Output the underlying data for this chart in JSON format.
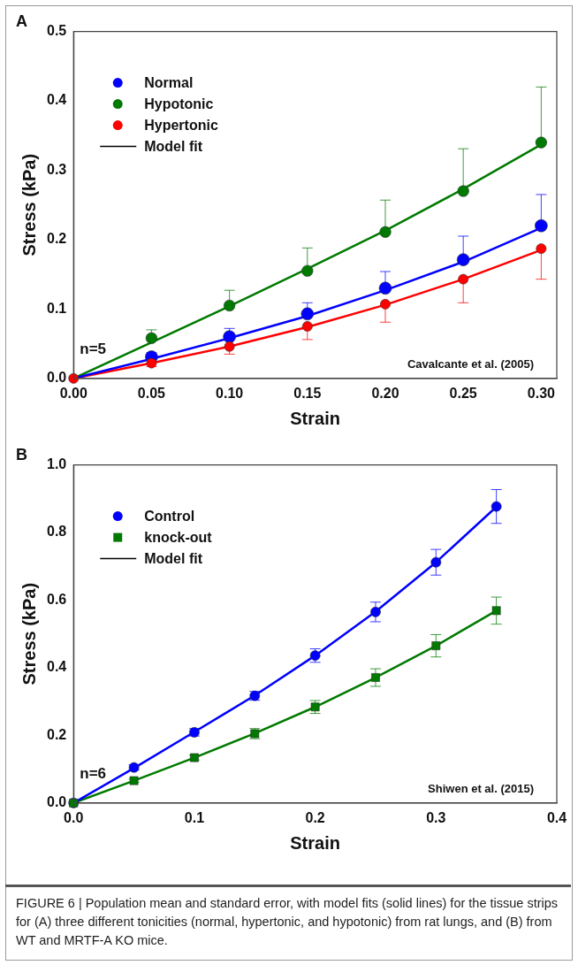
{
  "chart_data": [
    {
      "type": "scatter",
      "title": "A",
      "xlabel": "Strain",
      "ylabel": "Stress (kPa)",
      "x": [
        0,
        0.05,
        0.1,
        0.15,
        0.2,
        0.25,
        0.3
      ],
      "xlim": [
        0,
        0.31
      ],
      "ylim": [
        0,
        0.5
      ],
      "xticks": [
        {
          "value": 0,
          "label": "0.00"
        },
        {
          "value": 0.05,
          "label": "0.05"
        },
        {
          "value": 0.1,
          "label": "0.10"
        },
        {
          "value": 0.15,
          "label": "0.15"
        },
        {
          "value": 0.2,
          "label": "0.20"
        },
        {
          "value": 0.25,
          "label": "0.25"
        },
        {
          "value": 0.3,
          "label": "0.30"
        }
      ],
      "yticks": [
        {
          "value": 0,
          "label": "0.0"
        },
        {
          "value": 0.1,
          "label": "0.1"
        },
        {
          "value": 0.2,
          "label": "0.2"
        },
        {
          "value": 0.3,
          "label": "0.3"
        },
        {
          "value": 0.4,
          "label": "0.4"
        },
        {
          "value": 0.5,
          "label": "0.5"
        }
      ],
      "legend": "top left",
      "series": [
        {
          "type": "line",
          "color": "#0000ff",
          "values": [
            0,
            0.028,
            0.058,
            0.09,
            0.127,
            0.168,
            0.217
          ]
        },
        {
          "type": "line",
          "color": "#007a00",
          "values": [
            0,
            0.052,
            0.104,
            0.158,
            0.213,
            0.273,
            0.337
          ]
        },
        {
          "type": "line",
          "color": "#ff0000",
          "values": [
            0,
            0.022,
            0.046,
            0.074,
            0.106,
            0.143,
            0.185
          ]
        },
        {
          "name": "Normal",
          "type": "scatter",
          "marker": "circle",
          "color": "#0000ff",
          "values": [
            null,
            0.031,
            0.06,
            0.093,
            0.13,
            0.171,
            0.22
          ],
          "errors": [
            null,
            [
              0.031,
              0.037
            ],
            [
              0.06,
              0.072
            ],
            [
              0.093,
              0.109
            ],
            [
              0.13,
              0.154
            ],
            [
              0.171,
              0.205
            ],
            [
              0.22,
              0.265
            ]
          ]
        },
        {
          "name": "Hypotonic",
          "type": "scatter",
          "marker": "circle",
          "color": "#007a00",
          "values": [
            null,
            0.058,
            0.105,
            0.155,
            0.211,
            0.27,
            0.34
          ],
          "errors": [
            null,
            [
              0.058,
              0.07
            ],
            [
              0.105,
              0.127
            ],
            [
              0.155,
              0.188
            ],
            [
              0.211,
              0.257
            ],
            [
              0.27,
              0.331
            ],
            [
              0.34,
              0.42
            ]
          ]
        },
        {
          "name": "Hypertonic",
          "type": "scatter",
          "marker": "circle",
          "color": "#ff0000",
          "values": [
            0,
            0.022,
            0.046,
            0.075,
            0.107,
            0.143,
            0.187
          ],
          "errors": [
            null,
            [
              0.017,
              0.022
            ],
            [
              0.035,
              0.046
            ],
            [
              0.056,
              0.075
            ],
            [
              0.081,
              0.107
            ],
            [
              0.109,
              0.143
            ],
            [
              0.143,
              0.187
            ]
          ]
        },
        {
          "name": "Model fit",
          "type": "line",
          "color": "#000000",
          "values": [
            null,
            null,
            null,
            null,
            null,
            null,
            null
          ]
        }
      ],
      "annotations": [
        "n=5",
        "Cavalcante et al. (2005)"
      ]
    },
    {
      "type": "scatter",
      "title": "B",
      "xlabel": "Strain",
      "ylabel": "Stress (kPa)",
      "x": [
        0,
        0.05,
        0.1,
        0.15,
        0.2,
        0.25,
        0.3,
        0.35
      ],
      "xlim": [
        0,
        0.4
      ],
      "ylim": [
        0,
        1
      ],
      "xticks": [
        {
          "value": 0,
          "label": "0.0"
        },
        {
          "value": 0.1,
          "label": "0.1"
        },
        {
          "value": 0.2,
          "label": "0.2"
        },
        {
          "value": 0.3,
          "label": "0.3"
        },
        {
          "value": 0.4,
          "label": "0.4"
        }
      ],
      "yticks": [
        {
          "value": 0,
          "label": "0.0"
        },
        {
          "value": 0.2,
          "label": "0.2"
        },
        {
          "value": 0.4,
          "label": "0.4"
        },
        {
          "value": 0.6,
          "label": "0.6"
        },
        {
          "value": 0.8,
          "label": "0.8"
        },
        {
          "value": 1,
          "label": "1.0"
        }
      ],
      "legend": "top left",
      "series": [
        {
          "type": "line",
          "color": "#0000ff",
          "values": [
            0,
            0.103,
            0.21,
            0.318,
            0.436,
            0.566,
            0.712,
            0.876
          ]
        },
        {
          "type": "line",
          "color": "#007a00",
          "values": [
            0,
            0.066,
            0.134,
            0.206,
            0.284,
            0.371,
            0.465,
            0.569
          ]
        },
        {
          "name": "Control",
          "type": "scatter",
          "marker": "circle",
          "color": "#0000ff",
          "values": [
            0,
            0.105,
            0.209,
            0.317,
            0.436,
            0.565,
            0.712,
            0.877
          ],
          "errors": [
            null,
            0.008,
            0.011,
            0.013,
            0.02,
            0.029,
            0.038,
            0.05
          ]
        },
        {
          "name": "knock-out",
          "type": "scatter",
          "marker": "square",
          "color": "#007a00",
          "values": [
            0,
            0.066,
            0.134,
            0.205,
            0.284,
            0.371,
            0.465,
            0.569
          ],
          "errors": [
            null,
            0.005,
            0.007,
            0.015,
            0.019,
            0.026,
            0.033,
            0.04
          ]
        },
        {
          "name": "Model fit",
          "type": "line",
          "color": "#000000",
          "values": [
            null,
            null,
            null,
            null,
            null,
            null,
            null,
            null
          ]
        }
      ],
      "annotations": [
        "n=6",
        "Shiwen et al. (2015)",
        "FIGURE 6 | Population mean and standard error, with model fits (solid lines) for the tissue strips for (A) three different tonicities (normal, hypertonic, and hypotonic) from rat lungs, and (B) from WT and MRTF-A KO mice."
      ]
    }
  ]
}
